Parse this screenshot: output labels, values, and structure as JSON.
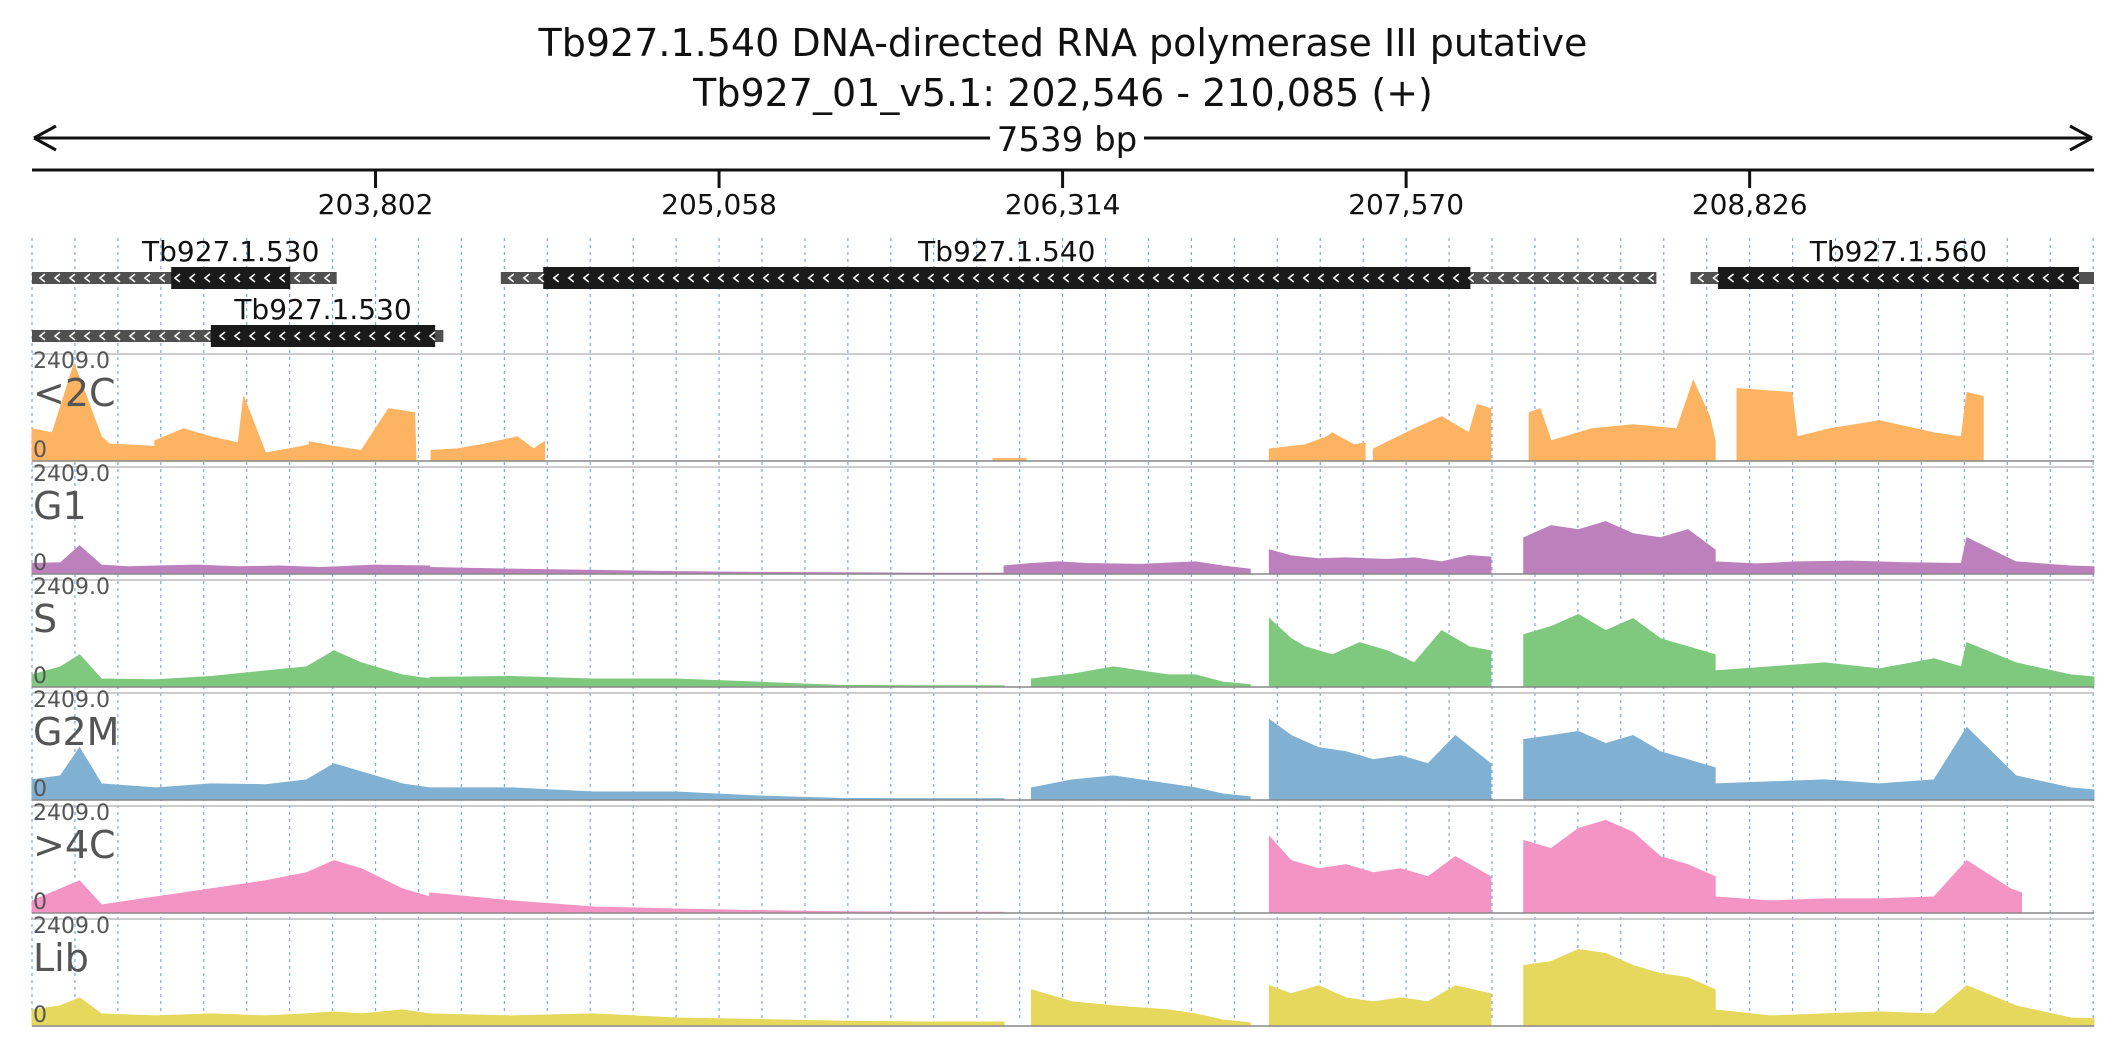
{
  "header": {
    "title": "Tb927.1.540  DNA-directed RNA polymerase III  putative",
    "region": "Tb927_01_v5.1: 202,546 - 210,085 (+)",
    "span_label": "7539 bp"
  },
  "region": {
    "start": 202546,
    "end": 210085
  },
  "ruler": {
    "ticks": [
      "203,802",
      "205,058",
      "206,314",
      "207,570",
      "208,826"
    ]
  },
  "genes": [
    {
      "label": "Tb927.1.530",
      "row": 0,
      "utr": [
        202546,
        203660
      ],
      "cds": [
        203055,
        203490
      ],
      "strand": "-"
    },
    {
      "label": "Tb927.1.530",
      "row": 1,
      "utr": [
        202546,
        204050
      ],
      "cds": [
        203200,
        204020
      ],
      "strand": "-"
    },
    {
      "label": "Tb927.1.540",
      "row": 0,
      "utr": [
        204260,
        208485
      ],
      "cds": [
        204415,
        207805
      ],
      "strand": "-"
    },
    {
      "label": "Tb927.1.560",
      "row": 0,
      "utr": [
        208610,
        210085
      ],
      "cds": [
        208710,
        210030
      ],
      "strand": "-"
    }
  ],
  "colors": {
    "<2C": "#fdb462",
    "G1": "#bc80bd",
    "S": "#7fc97f",
    "G2M": "#80b1d3",
    ">4C": "#f494c4",
    "Lib": "#e5d85c"
  },
  "tracks": [
    {
      "name": "<2C",
      "max": "2409.0",
      "min": "0"
    },
    {
      "name": "G1",
      "max": "2409.0",
      "min": "0"
    },
    {
      "name": "S",
      "max": "2409.0",
      "min": "0"
    },
    {
      "name": "G2M",
      "max": "2409.0",
      "min": "0"
    },
    {
      "name": ">4C",
      "max": "2409.0",
      "min": "0"
    },
    {
      "name": "Lib",
      "max": "2409.0",
      "min": "0"
    }
  ],
  "chart_data": {
    "type": "area",
    "x_range": [
      202546,
      210085
    ],
    "ylim": [
      0,
      2409.0
    ],
    "series": [
      {
        "name": "<2C",
        "segments": [
          {
            "x": [
              202546,
              202620,
              202700,
              202800,
              202830,
              202890,
              202960,
              202995
            ],
            "y": [
              800,
              700,
              2409,
              600,
              420,
              400,
              380,
              360
            ]
          },
          {
            "x": [
              202995,
              203100,
              203200,
              203300,
              203320,
              203400,
              203500,
              203560
            ],
            "y": [
              500,
              800,
              600,
              450,
              1600,
              200,
              320,
              400
            ]
          },
          {
            "x": [
              203560,
              203650,
              203750,
              203850,
              203945,
              203950,
              204000,
              204005
            ],
            "y": [
              480,
              360,
              260,
              1300,
              1200,
              0,
              0,
              0
            ]
          },
          {
            "x": [
              204005,
              204100,
              204200,
              204320,
              204380,
              204420
            ],
            "y": [
              260,
              300,
              420,
              600,
              300,
              480
            ]
          },
          {
            "x": [
              206060,
              206180
            ],
            "y": [
              60,
              60
            ]
          },
          {
            "x": [
              207070,
              207200,
              207280,
              207300,
              207380,
              207420
            ],
            "y": [
              300,
              400,
              600,
              700,
              400,
              450
            ]
          },
          {
            "x": [
              207450,
              207600,
              207700,
              207800,
              207830,
              207880
            ],
            "y": [
              300,
              800,
              1100,
              700,
              1400,
              1300
            ]
          },
          {
            "x": [
              208020,
              208060,
              208100,
              208250,
              208400,
              208560,
              208620,
              208680,
              208700
            ],
            "y": [
              1200,
              1300,
              500,
              800,
              900,
              800,
              2000,
              1100,
              500
            ]
          },
          {
            "x": [
              208780,
              208980,
              209000,
              209120,
              209300,
              209500,
              209600,
              209620,
              209680
            ],
            "y": [
              1800,
              1700,
              600,
              800,
              1000,
              700,
              600,
              1700,
              1600
            ]
          }
        ]
      },
      {
        "name": "G1",
        "segments": [
          {
            "x": [
              202546,
              202650,
              202720,
              202800,
              202900,
              203000,
              203150,
              203300,
              203450,
              203600,
              203800,
              204000
            ],
            "y": [
              260,
              280,
              700,
              220,
              180,
              200,
              220,
              180,
              200,
              160,
              220,
              200
            ]
          },
          {
            "x": [
              204000,
              204300,
              204600,
              204900,
              205200,
              205500,
              205800,
              206100
            ],
            "y": [
              160,
              120,
              90,
              60,
              40,
              30,
              20,
              20
            ]
          },
          {
            "x": [
              206100,
              206200,
              206300,
              206400,
              206600,
              206800,
              206900,
              207000
            ],
            "y": [
              200,
              260,
              300,
              260,
              240,
              300,
              200,
              120
            ]
          },
          {
            "x": [
              207070,
              207150,
              207250,
              207350,
              207500,
              207600,
              207700,
              207800,
              207880
            ],
            "y": [
              600,
              450,
              380,
              400,
              360,
              400,
              300,
              460,
              420
            ]
          },
          {
            "x": [
              208000,
              208100,
              208200,
              208300,
              208400,
              208500,
              208600,
              208700
            ],
            "y": [
              900,
              1200,
              1100,
              1300,
              1000,
              900,
              1100,
              600
            ]
          },
          {
            "x": [
              208700,
              208850,
              209000,
              209200,
              209400,
              209600,
              209620,
              209800,
              210000,
              210085
            ],
            "y": [
              300,
              250,
              300,
              320,
              280,
              260,
              900,
              300,
              200,
              180
            ]
          }
        ]
      },
      {
        "name": "S",
        "segments": [
          {
            "x": [
              202546,
              202650,
              202720,
              202800,
              203000,
              203200,
              203400,
              203550,
              203650,
              203750,
              203900,
              204000
            ],
            "y": [
              300,
              500,
              800,
              200,
              180,
              260,
              400,
              500,
              900,
              600,
              300,
              200
            ]
          },
          {
            "x": [
              204000,
              204300,
              204600,
              204900,
              205200,
              205500,
              205800,
              206100
            ],
            "y": [
              240,
              260,
              200,
              200,
              120,
              40,
              30,
              30
            ]
          },
          {
            "x": [
              206200,
              206350,
              206500,
              206700,
              206800,
              206900,
              207000
            ],
            "y": [
              200,
              320,
              500,
              300,
              300,
              120,
              60
            ]
          },
          {
            "x": [
              207070,
              207150,
              207200,
              207300,
              207400,
              207500,
              207600,
              207700,
              207800,
              207880
            ],
            "y": [
              1700,
              1200,
              1000,
              800,
              1100,
              900,
              600,
              1400,
              1000,
              900
            ]
          },
          {
            "x": [
              208000,
              208100,
              208200,
              208300,
              208400,
              208500,
              208600,
              208700
            ],
            "y": [
              1300,
              1500,
              1800,
              1400,
              1700,
              1200,
              1000,
              800
            ]
          },
          {
            "x": [
              208700,
              208900,
              209100,
              209300,
              209500,
              209600,
              209620,
              209800,
              210000,
              210085
            ],
            "y": [
              400,
              500,
              600,
              450,
              700,
              500,
              1100,
              600,
              300,
              250
            ]
          }
        ]
      },
      {
        "name": "G2M",
        "segments": [
          {
            "x": [
              202546,
              202650,
              202720,
              202800,
              203000,
              203200,
              203400,
              203550,
              203650,
              203750,
              203900,
              204000
            ],
            "y": [
              500,
              600,
              1300,
              400,
              300,
              400,
              380,
              500,
              900,
              700,
              400,
              300
            ]
          },
          {
            "x": [
              204000,
              204300,
              204600,
              204900,
              205200,
              205500,
              205800,
              206100
            ],
            "y": [
              300,
              300,
              200,
              200,
              100,
              40,
              30,
              30
            ]
          },
          {
            "x": [
              206200,
              206350,
              206500,
              206700,
              206800,
              206900,
              207000
            ],
            "y": [
              300,
              500,
              600,
              400,
              300,
              150,
              80
            ]
          },
          {
            "x": [
              207070,
              207150,
              207250,
              207350,
              207450,
              207550,
              207650,
              207750,
              207880
            ],
            "y": [
              2000,
              1600,
              1300,
              1200,
              1000,
              1100,
              900,
              1600,
              900
            ]
          },
          {
            "x": [
              208000,
              208100,
              208200,
              208300,
              208400,
              208500,
              208600,
              208700
            ],
            "y": [
              1500,
              1600,
              1700,
              1400,
              1600,
              1200,
              1000,
              800
            ]
          },
          {
            "x": [
              208700,
              208900,
              209100,
              209300,
              209500,
              209620,
              209800,
              210000,
              210085
            ],
            "y": [
              400,
              450,
              500,
              400,
              500,
              1800,
              600,
              300,
              250
            ]
          }
        ]
      },
      {
        "name": ">4C",
        "segments": [
          {
            "x": [
              202546,
              202650,
              202720,
              202800,
              203000,
              203200,
              203400,
              203550,
              203650,
              203750,
              203900,
              204000
            ],
            "y": [
              300,
              600,
              800,
              200,
              400,
              600,
              800,
              1000,
              1300,
              1100,
              600,
              400
            ]
          },
          {
            "x": [
              204000,
              204300,
              204600,
              204900,
              205200,
              205500,
              205800,
              206100
            ],
            "y": [
              500,
              300,
              150,
              100,
              60,
              30,
              20,
              20
            ]
          },
          {
            "x": [
              207070,
              207150,
              207250,
              207350,
              207450,
              207550,
              207650,
              207750,
              207880
            ],
            "y": [
              1900,
              1300,
              1100,
              1200,
              1000,
              1100,
              900,
              1400,
              900
            ]
          },
          {
            "x": [
              208000,
              208100,
              208200,
              208300,
              208400,
              208500,
              208600,
              208700
            ],
            "y": [
              1800,
              1600,
              2100,
              2300,
              2000,
              1400,
              1200,
              900
            ]
          },
          {
            "x": [
              208700,
              208900,
              209100,
              209300,
              209500,
              209620,
              209780,
              209820
            ],
            "y": [
              400,
              300,
              350,
              350,
              400,
              1300,
              600,
              500
            ]
          }
        ]
      },
      {
        "name": "Lib",
        "segments": [
          {
            "x": [
              202546,
              202650,
              202720,
              202800,
              203000,
              203200,
              203400,
              203550,
              203650,
              203750,
              203900,
              204000
            ],
            "y": [
              400,
              500,
              700,
              300,
              250,
              300,
              250,
              300,
              350,
              300,
              400,
              300
            ]
          },
          {
            "x": [
              204000,
              204300,
              204600,
              204900,
              205200,
              205500,
              205800,
              206100
            ],
            "y": [
              300,
              250,
              300,
              200,
              160,
              120,
              100,
              100
            ]
          },
          {
            "x": [
              206200,
              206350,
              206500,
              206700,
              206800,
              206900,
              207000
            ],
            "y": [
              900,
              600,
              500,
              400,
              300,
              150,
              80
            ]
          },
          {
            "x": [
              207070,
              207150,
              207250,
              207350,
              207450,
              207550,
              207650,
              207750,
              207880
            ],
            "y": [
              1000,
              800,
              1000,
              700,
              600,
              700,
              600,
              1000,
              800
            ]
          },
          {
            "x": [
              208000,
              208100,
              208200,
              208300,
              208400,
              208500,
              208600,
              208700
            ],
            "y": [
              1500,
              1600,
              1900,
              1800,
              1500,
              1300,
              1200,
              900
            ]
          },
          {
            "x": [
              208700,
              208900,
              209100,
              209300,
              209500,
              209620,
              209800,
              210000,
              210085
            ],
            "y": [
              400,
              250,
              300,
              350,
              300,
              1000,
              500,
              200,
              180
            ]
          }
        ]
      }
    ]
  }
}
